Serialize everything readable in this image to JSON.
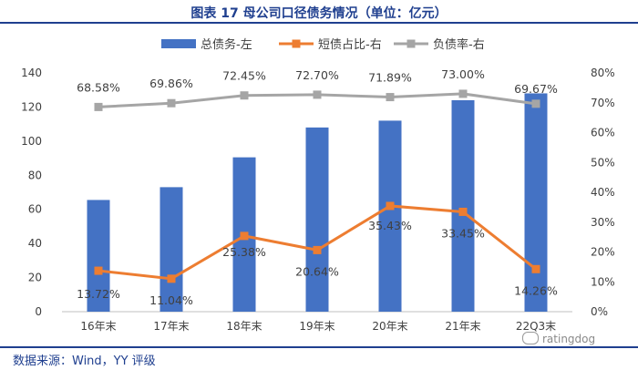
{
  "title": "图表 17 母公司口径债务情况（单位：亿元）",
  "source": "数据来源：Wind，YY 评级",
  "watermark": "ratingdog",
  "chart_data": {
    "type": "bar",
    "categories": [
      "16年末",
      "17年末",
      "18年末",
      "19年末",
      "20年末",
      "21年末",
      "22Q3末"
    ],
    "series": [
      {
        "name": "总债务-左",
        "type": "bar",
        "axis": "left",
        "color": "#4472C4",
        "values": [
          65.5,
          73,
          90.5,
          108,
          112,
          124,
          128
        ]
      },
      {
        "name": "短债占比-右",
        "type": "line",
        "axis": "right",
        "color": "#ED7D31",
        "values": [
          13.72,
          11.04,
          25.38,
          20.64,
          35.43,
          33.45,
          14.26
        ],
        "labels": [
          "13.72%",
          "11.04%",
          "25.38%",
          "20.64%",
          "35.43%",
          "33.45%",
          "14.26%"
        ]
      },
      {
        "name": "负债率-右",
        "type": "line",
        "axis": "right",
        "color": "#A5A5A5",
        "values": [
          68.58,
          69.86,
          72.45,
          72.7,
          71.89,
          73.0,
          69.67
        ],
        "labels": [
          "68.58%",
          "69.86%",
          "72.45%",
          "72.70%",
          "71.89%",
          "73.00%",
          "69.67%"
        ]
      }
    ],
    "y_left": {
      "min": 0,
      "max": 140,
      "step": 20,
      "ticks": [
        "0",
        "20",
        "40",
        "60",
        "80",
        "100",
        "120",
        "140"
      ]
    },
    "y_right": {
      "min": 0,
      "max": 80,
      "step": 10,
      "ticks": [
        "0%",
        "10%",
        "20%",
        "30%",
        "40%",
        "50%",
        "60%",
        "70%",
        "80%"
      ]
    },
    "legend_position": "top",
    "grid": false
  }
}
